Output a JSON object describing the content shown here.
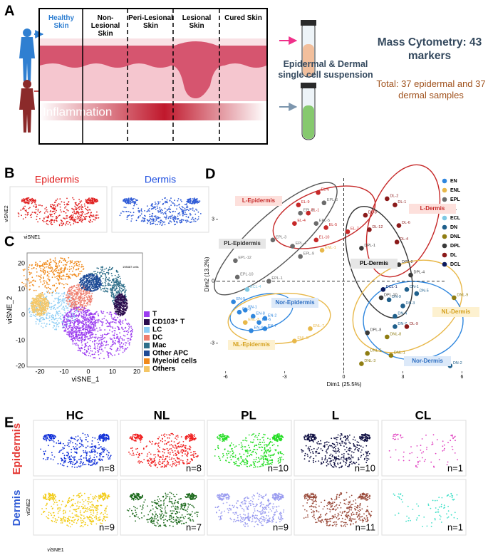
{
  "panel_a": {
    "letter": "A",
    "stages": [
      "Healthy Skin",
      "Non-Lesional Skin",
      "Peri-Lesional Skin",
      "Lesional Skin",
      "Cured Skin"
    ],
    "inflammation": "Inflammation",
    "suspension": "Epidermal & Dermal single cell suspension",
    "cytometry": "Mass Cytometry: 43 markers",
    "total": "Total: 37 epidermal and 37 dermal samples"
  },
  "panel_b": {
    "letter": "B",
    "titles": [
      "Epidermis",
      "Dermis"
    ],
    "ylabel": "viSNE2",
    "xlabel": "viSNE1"
  },
  "panel_c": {
    "letter": "C",
    "note": "198487 cells",
    "xlabel": "viSNE_1",
    "ylabel": "viSNE_2",
    "xticks": [
      -20,
      -10,
      0,
      10,
      20
    ],
    "yticks": [
      -20,
      -10,
      0,
      10,
      20
    ],
    "legend": [
      {
        "name": "T",
        "color": "#9b3cf0"
      },
      {
        "name": "CD103⁺ T",
        "color": "#2b0d4d"
      },
      {
        "name": "LC",
        "color": "#8ccdf5"
      },
      {
        "name": "DC",
        "color": "#ef7e6e"
      },
      {
        "name": "Mac",
        "color": "#2f6f8a"
      },
      {
        "name": "Other APC",
        "color": "#1d4a96"
      },
      {
        "name": "Myeloid cells",
        "color": "#f08a1c"
      },
      {
        "name": "Others",
        "color": "#f4c666"
      }
    ]
  },
  "chart_data": {
    "type": "scatter",
    "letter": "D",
    "xlabel": "Dim1 (25.5%)",
    "ylabel": "Dim2 (13.2%)",
    "xlim": [
      -6.6,
      6.6
    ],
    "ylim": [
      -4.5,
      5
    ],
    "xticks": [
      -6,
      -3,
      0,
      3,
      6
    ],
    "yticks": [
      -3,
      0,
      3
    ],
    "legend": "top-right",
    "annotations": [
      "L-Epidermis",
      "PL-Epidermis",
      "Nor-Epidermis",
      "NL-Epidermis",
      "L-Dermis",
      "PL-Dermis",
      "NL-Dermis",
      "Nor-Dermis"
    ],
    "series": [
      {
        "name": "EN",
        "color": "#2e86de",
        "x": [
          -5.6,
          -5.3,
          -5.0,
          -4.6,
          -4.3,
          -4.0,
          -4.0,
          -4.7
        ],
        "y": [
          -1.0,
          -1.5,
          -1.4,
          -1.7,
          -2.0,
          -1.8,
          -2.3,
          -2.4
        ],
        "labels": [
          "EN-5",
          "EN-3",
          "EN-1",
          "EN-8",
          "EN-6",
          "EN-2",
          "EN-7",
          "EN-4"
        ]
      },
      {
        "name": "ENL",
        "color": "#e8b84a",
        "x": [
          -1.1,
          -1.7,
          -2.5,
          -5.0
        ],
        "y": [
          1.5,
          -2.3,
          -2.9,
          -2.0
        ],
        "labels": [
          "ENL-1",
          "ENL-7",
          "ENL-5",
          "ENL-3"
        ]
      },
      {
        "name": "EPL",
        "color": "#6b6b6b",
        "x": [
          -1.0,
          -1.4,
          -2.2,
          -2.6,
          -3.6,
          -2.2,
          -5.5,
          -5.4,
          -3.8
        ],
        "y": [
          3.8,
          2.8,
          3.3,
          1.7,
          2.0,
          1.2,
          1.0,
          0.2,
          0.0
        ],
        "labels": [
          "EPL-6",
          "EPL-5",
          "EPL-8",
          "EPL-4",
          "EPL-3",
          "EPL-9",
          "EPL-12",
          "EPL-10",
          "EPL-1"
        ]
      },
      {
        "name": "EL",
        "color": "#c62828",
        "x": [
          -1.3,
          -2.3,
          -1.8,
          -0.9,
          -2.5,
          -1.4,
          0.2
        ],
        "y": [
          4.3,
          3.7,
          3.3,
          2.6,
          2.8,
          2.0,
          2.4
        ],
        "labels": [
          "EL-6",
          "EL-9",
          "EL-1",
          "EL-5",
          "EL-4",
          "EL-10",
          "EL-7"
        ]
      },
      {
        "name": "ECL",
        "color": "#7ec8e3",
        "x": [
          -4.9
        ],
        "y": [
          -0.4
        ],
        "labels": [
          "ECL-4"
        ]
      },
      {
        "name": "DN",
        "color": "#1f5f8b",
        "x": [
          3.7,
          3.2,
          2.3,
          3.0,
          2.6,
          2.6,
          5.4
        ],
        "y": [
          -0.6,
          -0.4,
          -0.9,
          -1.2,
          -1.7,
          -2.2,
          -4.1
        ],
        "labels": [
          "DN-5",
          "DN-1",
          "DN-9",
          "DN-3",
          "DN-4",
          "DN-7",
          "DN-2"
        ]
      },
      {
        "name": "DNL",
        "color": "#8f7d12",
        "x": [
          0.7,
          5.6,
          2.2,
          1.2,
          2.4,
          0.9
        ],
        "y": [
          0.8,
          -0.8,
          -2.7,
          -3.5,
          -3.6,
          -4.0
        ],
        "labels": [
          "DNL-12",
          "DNL-9",
          "DNL-8",
          "DNL-5",
          "DNL-1",
          "DNL-3"
        ]
      },
      {
        "name": "DPL",
        "color": "#3a3a3a",
        "x": [
          0.9,
          2.8,
          3.4,
          1.9,
          1.2
        ],
        "y": [
          1.6,
          0.8,
          0.3,
          -0.8,
          -2.5
        ],
        "labels": [
          "DPL-1",
          "DPL-2",
          "DPL-4",
          "DPL-10",
          "DPL-8"
        ]
      },
      {
        "name": "DL",
        "color": "#8b1a1a",
        "x": [
          2.2,
          2.6,
          1.1,
          1.3,
          2.8,
          2.7,
          3.2
        ],
        "y": [
          4.0,
          3.7,
          3.2,
          2.5,
          2.7,
          1.9,
          -2.2
        ],
        "labels": [
          "DL-2",
          "DL-1",
          "DL-8",
          "DL-12",
          "DL-6",
          "DL-4",
          "DL-9"
        ]
      },
      {
        "name": "DCL",
        "color": "#0b1a5e",
        "x": [
          2.0
        ],
        "y": [
          -0.4
        ],
        "labels": [
          "DCL-1"
        ]
      }
    ]
  },
  "panel_e": {
    "letter": "E",
    "columns": [
      "HC",
      "NL",
      "PL",
      "L",
      "CL"
    ],
    "ylabel": "viSNE2",
    "xlabel": "viSNE1",
    "rows": [
      {
        "name": "Epidermis",
        "color": "#e53935",
        "dots": [
          "#1030d8",
          "#f02020",
          "#22dd22",
          "#0c0c40",
          "#e040c0"
        ],
        "n": [
          "n=8",
          "n=8",
          "n=10",
          "n=10",
          "n=1"
        ]
      },
      {
        "name": "Dermis",
        "color": "#2f5bd6",
        "dots": [
          "#f2cc1a",
          "#1e6b1e",
          "#9a9cf0",
          "#9a4a3a",
          "#40e0c8"
        ],
        "n": [
          "n=9",
          "n=7",
          "n=9",
          "n=11",
          "n=1"
        ]
      }
    ]
  }
}
